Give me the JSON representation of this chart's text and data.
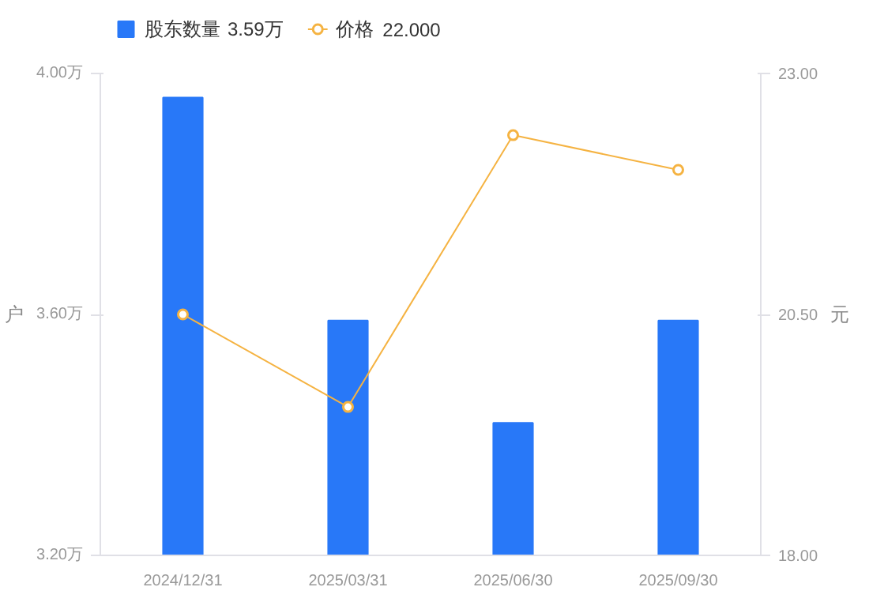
{
  "chart_data": {
    "type": "bar",
    "categories": [
      "2024/12/31",
      "2025/03/31",
      "2025/06/30",
      "2025/09/30"
    ],
    "series": [
      {
        "name": "股东数量",
        "color": "#2878f8",
        "values": [
          3.96,
          3.59,
          3.42,
          3.59
        ]
      },
      {
        "name": "价格",
        "type": "line",
        "axis": "y2",
        "color": "#f5b342",
        "values": [
          20.5,
          19.54,
          22.36,
          22.0
        ]
      }
    ],
    "annotations": [
      "3.59万",
      "22.000"
    ],
    "ylabel": "户",
    "y2label": "元",
    "ylim": [
      3.2,
      4.0
    ],
    "yticks": [
      {
        "value": 3.2,
        "label": "3.20万"
      },
      {
        "value": 3.6,
        "label": "3.60万"
      },
      {
        "value": 4.0,
        "label": "4.00万"
      }
    ],
    "y2lim": [
      18,
      23
    ],
    "y2ticks": [
      {
        "value": 18,
        "label": "18.00"
      },
      {
        "value": 20.5,
        "label": "20.50"
      },
      {
        "value": 23,
        "label": "23.00"
      }
    ],
    "grid": false,
    "legend": "top left",
    "marker": "circle",
    "line_style": "solid"
  }
}
